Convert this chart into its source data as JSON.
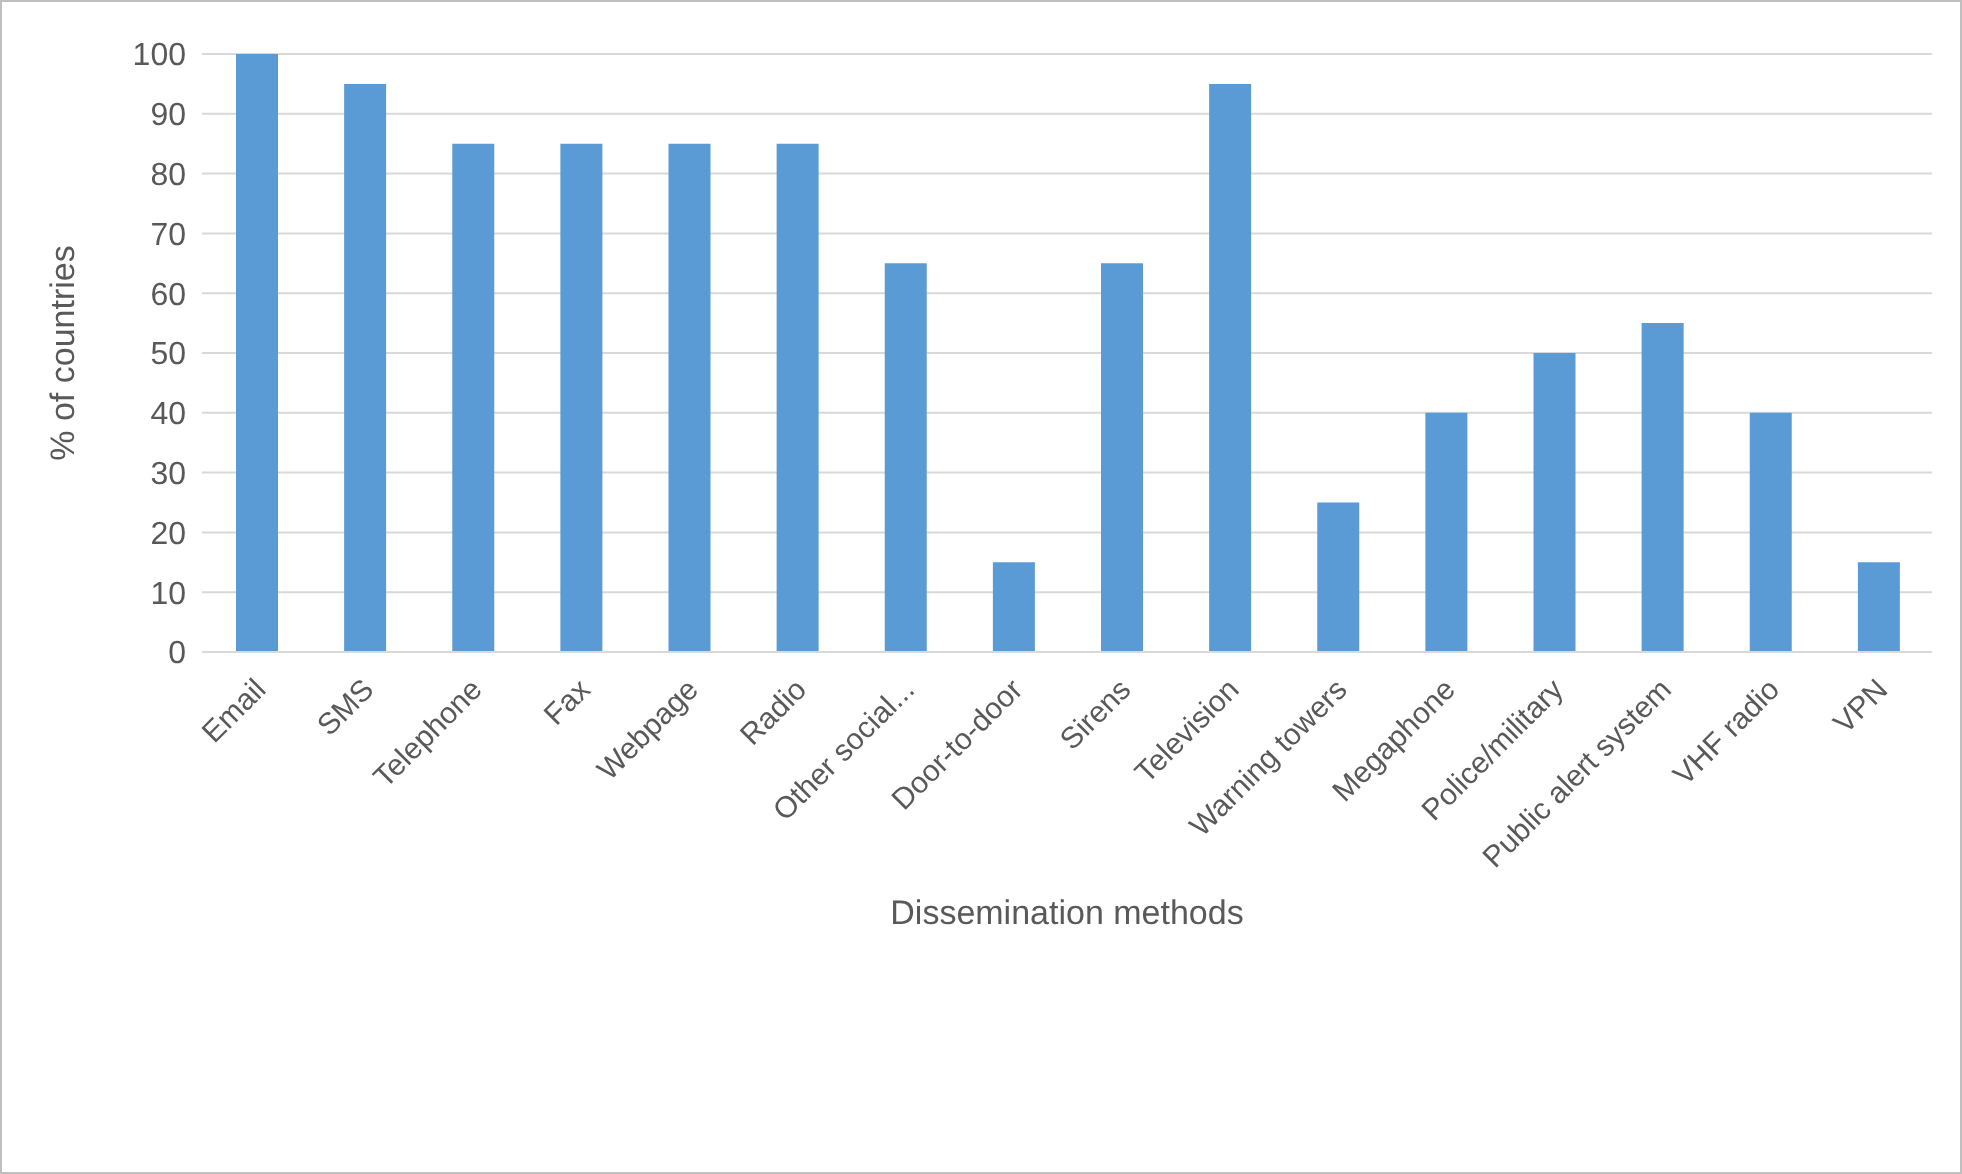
{
  "chart_data": {
    "type": "bar",
    "xlabel": "Dissemination methods",
    "ylabel": "% of countries",
    "categories": [
      "Email",
      "SMS",
      "Telephone",
      "Fax",
      "Webpage",
      "Radio",
      "Other social...",
      "Door-to-door",
      "Sirens",
      "Television",
      "Warning towers",
      "Megaphone",
      "Police/military",
      "Public alert system",
      "VHF radio",
      "VPN"
    ],
    "values": [
      100,
      95,
      85,
      85,
      85,
      85,
      65,
      15,
      65,
      95,
      25,
      40,
      50,
      55,
      40,
      15
    ],
    "color": "#5b9bd5",
    "ylim": [
      0,
      100
    ],
    "yticks": [
      0,
      10,
      20,
      30,
      40,
      50,
      60,
      70,
      80,
      90,
      100
    ],
    "grid": "y",
    "legend": false
  }
}
